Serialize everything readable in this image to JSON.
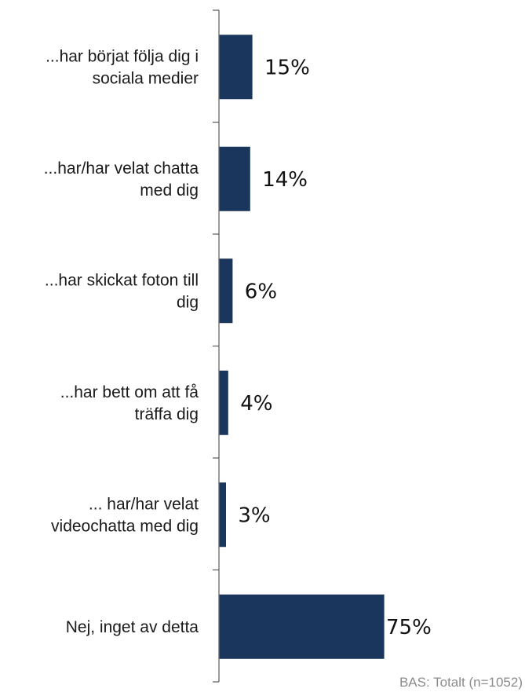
{
  "chart_data": {
    "type": "bar",
    "orientation": "horizontal",
    "categories": [
      [
        "...har börjat följa dig i",
        "sociala medier"
      ],
      [
        "...har/har velat chatta",
        "med dig"
      ],
      [
        "...har skickat foton till",
        "dig"
      ],
      [
        "...har bett om att få",
        "träffa dig"
      ],
      [
        "... har/har velat",
        "videochatta med dig"
      ],
      [
        "Nej, inget av detta"
      ]
    ],
    "values": [
      15,
      14,
      6,
      4,
      3,
      75
    ],
    "value_labels": [
      "15%",
      "14%",
      "6%",
      "4%",
      "3%",
      "75%"
    ],
    "unit": "%",
    "xlim": [
      0,
      100
    ],
    "bar_color": "#1b365d",
    "grid": false,
    "legend": "none"
  },
  "footnote": "BAS: Totalt (n=1052)"
}
